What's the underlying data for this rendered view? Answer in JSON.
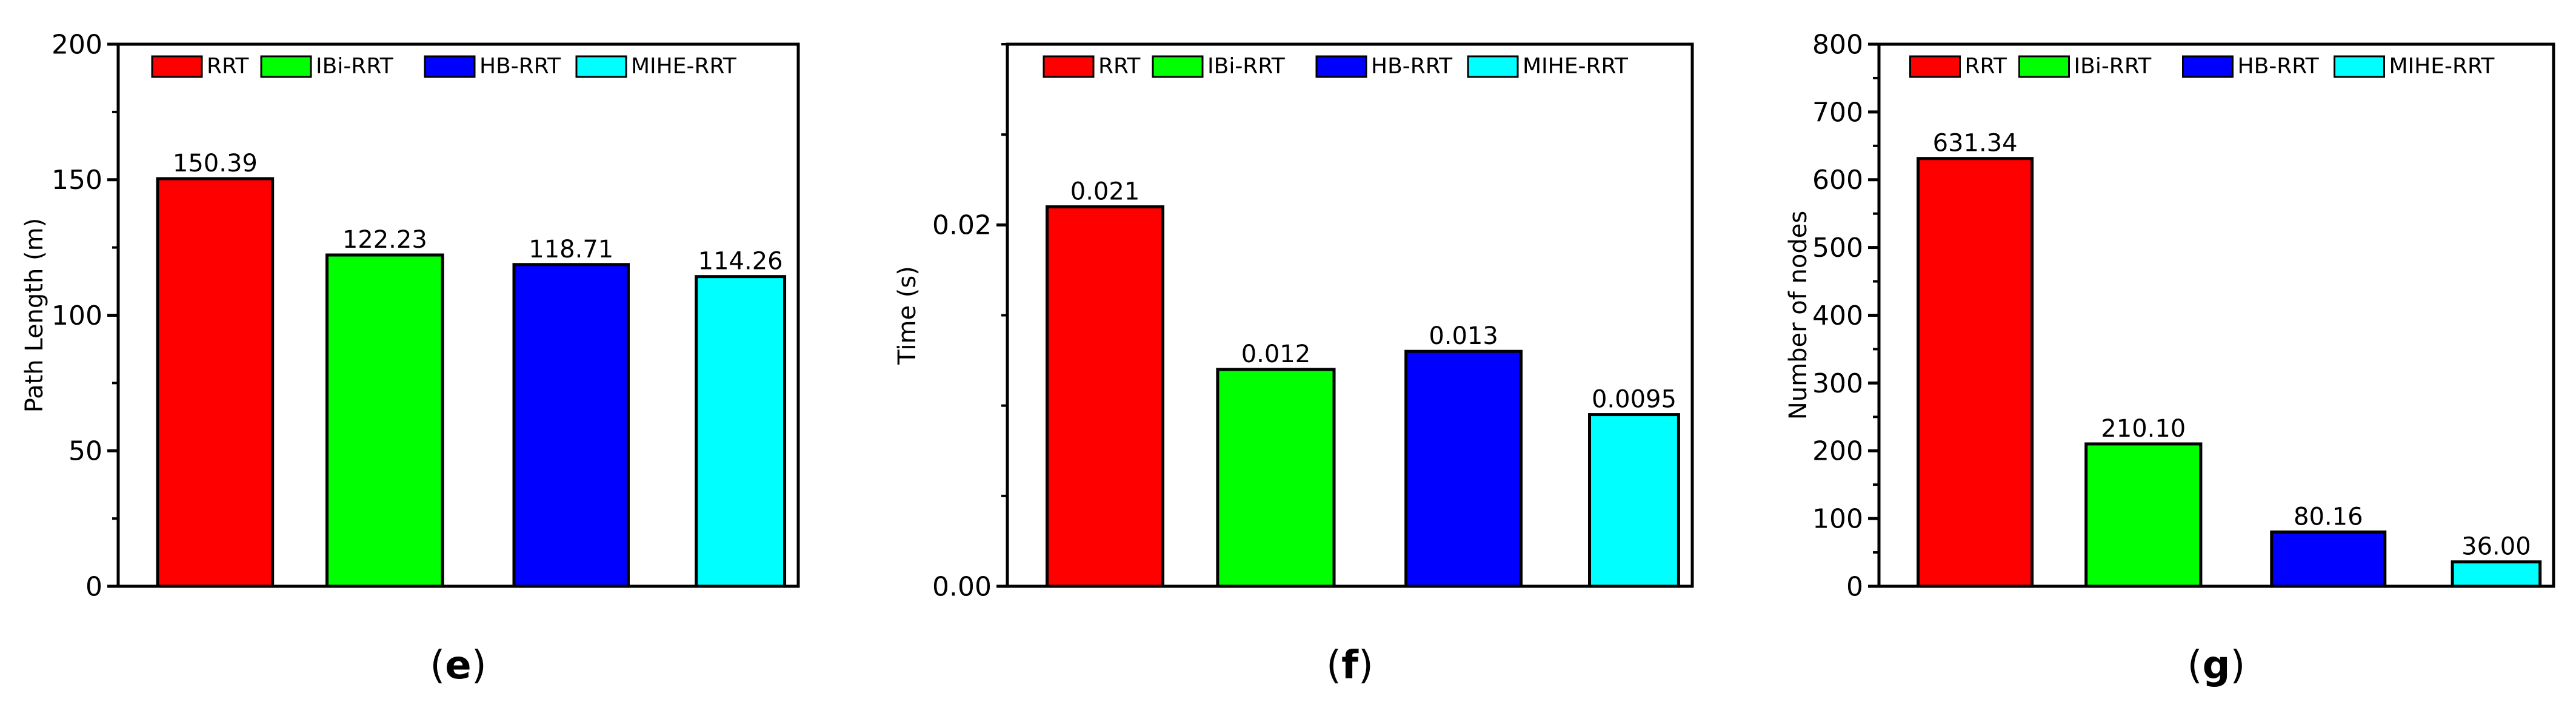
{
  "colors": {
    "RRT": "#ff0000",
    "IBi-RRT": "#00ff00",
    "HB-RRT": "#0000ff",
    "MIHE-RRT": "#00ffff",
    "axis": "#000000"
  },
  "legend_entries": [
    "RRT",
    "IBi-RRT",
    "HB-RRT",
    "MIHE-RRT"
  ],
  "chart_data": [
    {
      "type": "bar",
      "panel_label": "e",
      "categories": [
        "RRT",
        "IBi-RRT",
        "HB-RRT",
        "MIHE-RRT"
      ],
      "values": [
        150.39,
        122.23,
        118.71,
        114.26
      ],
      "value_labels": [
        "150.39",
        "122.23",
        "118.71",
        "114.26"
      ],
      "ylabel": "Path Length (m)",
      "ylim": [
        0,
        200
      ],
      "yticks": [
        0,
        50,
        100,
        150,
        200
      ],
      "ytick_labels": [
        "0",
        "50",
        "100",
        "150",
        "200"
      ],
      "legend": "top",
      "grid": false
    },
    {
      "type": "bar",
      "panel_label": "f",
      "categories": [
        "RRT",
        "IBi-RRT",
        "HB-RRT",
        "MIHE-RRT"
      ],
      "values": [
        0.021,
        0.012,
        0.013,
        0.0095
      ],
      "value_labels": [
        "0.021",
        "0.012",
        "0.013",
        "0.0095"
      ],
      "ylabel": "Time (s)",
      "ylim": [
        0,
        0.03
      ],
      "yticks": [
        0,
        0.02
      ],
      "ytick_labels": [
        "0.00",
        "0.02"
      ],
      "legend": "top",
      "grid": false
    },
    {
      "type": "bar",
      "panel_label": "g",
      "categories": [
        "RRT",
        "IBi-RRT",
        "HB-RRT",
        "MIHE-RRT"
      ],
      "values": [
        631.34,
        210.1,
        80.16,
        36.0
      ],
      "value_labels": [
        "631.34",
        "210.10",
        "80.16",
        "36.00"
      ],
      "ylabel": "Number of nodes",
      "ylim": [
        0,
        800
      ],
      "yticks": [
        0,
        100,
        200,
        300,
        400,
        500,
        600,
        700,
        800
      ],
      "ytick_labels": [
        "0",
        "100",
        "200",
        "300",
        "400",
        "500",
        "600",
        "700",
        "800"
      ],
      "legend": "top",
      "grid": false
    }
  ]
}
